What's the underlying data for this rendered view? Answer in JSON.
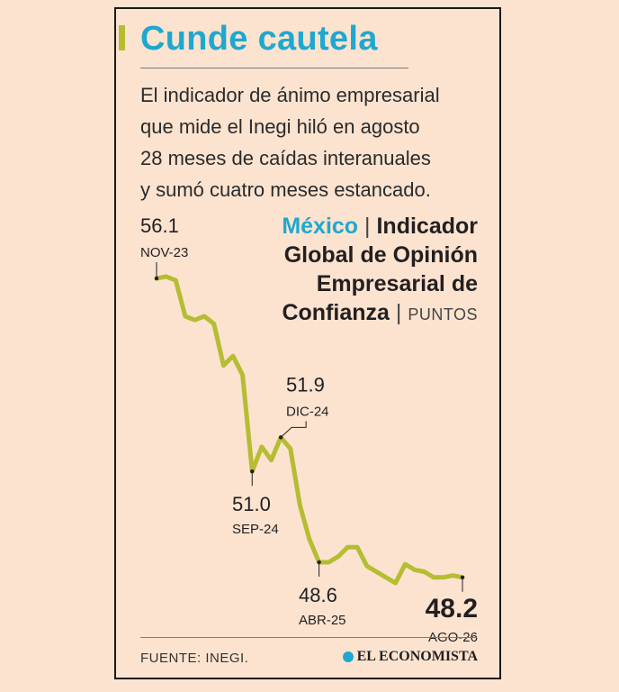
{
  "header": {
    "title": "Cunde cautela",
    "subtitle_lines": [
      "El indicador de ánimo empresarial",
      "que mide el Inegi hiló en agosto",
      "28 meses de caídas interanuales",
      "y sumó cuatro meses estancado."
    ]
  },
  "legend": {
    "country": "México",
    "separator": "|",
    "name_part1": "Indicador",
    "name_line2": "Global de Opinión",
    "name_line3": "Empresarial de",
    "name_line4": "Confianza",
    "unit": "PUNTOS"
  },
  "footer": {
    "source": "FUENTE:  INEGI.",
    "brand": "EL ECONOMISTA"
  },
  "colors": {
    "line": "#b5bd32",
    "accent": "#1fa8cf",
    "background": "#fbe3d0"
  },
  "chart_data": {
    "type": "line",
    "series": [
      {
        "values": [
          56.1,
          56.15,
          56.05,
          55.1,
          55.0,
          55.1,
          54.9,
          53.8,
          54.05,
          53.55,
          51.0,
          51.65,
          51.3,
          51.9,
          51.6,
          50.1,
          49.2,
          48.6,
          48.6,
          48.75,
          49.0,
          49.0,
          48.5,
          48.35,
          48.2,
          48.05,
          48.55,
          48.4,
          48.35,
          48.2,
          48.2,
          48.25,
          48.2
        ]
      }
    ],
    "annotations": [
      {
        "index": 0,
        "value": "56.1",
        "date": "NOV-23"
      },
      {
        "index": 10,
        "value": "51.0",
        "date": "SEP-24"
      },
      {
        "index": 13,
        "value": "51.9",
        "date": "DIC-24"
      },
      {
        "index": 17,
        "value": "48.6",
        "date": "ABR-25"
      },
      {
        "index": 32,
        "value": "48.2",
        "date": "AGO-26"
      }
    ]
  }
}
